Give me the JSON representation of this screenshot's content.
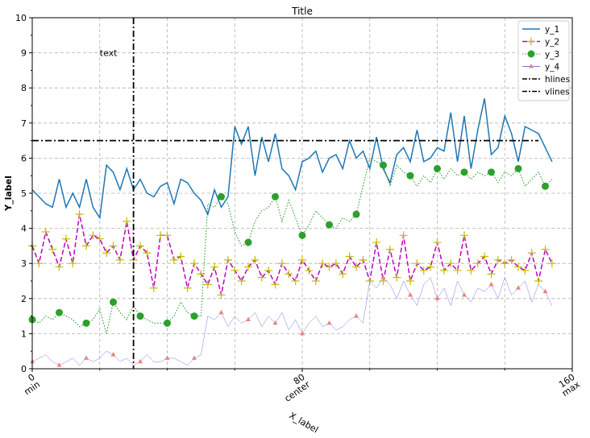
{
  "chart_data": {
    "type": "line",
    "title": "Title",
    "xlabel": "X_label",
    "ylabel": "Y_label",
    "xlim": [
      0,
      160
    ],
    "ylim": [
      0,
      10
    ],
    "grid": true,
    "legend_position": "top-right",
    "x_ticks": [
      {
        "value": 0,
        "label": "0\nmin"
      },
      {
        "value": 80,
        "label": "80\ncenter"
      },
      {
        "value": 160,
        "label": "160\nmax"
      }
    ],
    "x_minor_ticks": [
      20,
      40,
      60,
      100,
      120,
      140
    ],
    "y_ticks": [
      0,
      1,
      2,
      3,
      4,
      5,
      6,
      7,
      8,
      9,
      10
    ],
    "annotation": {
      "text": "text",
      "x": 20,
      "y": 9
    },
    "series": [
      {
        "name": "y_1",
        "color": "#1f77b4",
        "style": "solid",
        "x": [
          0,
          2,
          4,
          6,
          8,
          10,
          12,
          14,
          16,
          18,
          20,
          22,
          24,
          26,
          28,
          30,
          32,
          34,
          36,
          38,
          40,
          42,
          44,
          46,
          48,
          50,
          52,
          54,
          56,
          58,
          60,
          62,
          64,
          66,
          68,
          70,
          72,
          74,
          76,
          78,
          80,
          82,
          84,
          86,
          88,
          90,
          92,
          94,
          96,
          98,
          100,
          102,
          104,
          106,
          108,
          110,
          112,
          114,
          116,
          118,
          120,
          122,
          124,
          126,
          128,
          130,
          132,
          134,
          136,
          138,
          140,
          142,
          144,
          146,
          148,
          150,
          152,
          154
        ],
        "values": [
          5.1,
          4.9,
          4.7,
          4.6,
          5.4,
          4.6,
          5.0,
          4.6,
          5.4,
          4.6,
          4.3,
          5.8,
          5.6,
          5.1,
          5.7,
          5.1,
          5.4,
          5.0,
          4.9,
          5.2,
          5.3,
          4.7,
          5.4,
          5.3,
          5.0,
          4.8,
          4.4,
          5.1,
          4.6,
          4.9,
          6.9,
          6.4,
          6.9,
          5.5,
          6.6,
          5.9,
          6.7,
          5.7,
          5.5,
          5.1,
          5.9,
          6.0,
          6.2,
          5.6,
          6.0,
          6.1,
          5.7,
          6.5,
          6.0,
          6.2,
          5.7,
          6.6,
          5.7,
          5.3,
          6.1,
          6.3,
          5.9,
          6.8,
          5.9,
          6.0,
          6.3,
          6.2,
          7.3,
          5.9,
          7.2,
          5.7,
          6.8,
          7.7,
          6.1,
          6.3,
          7.2,
          6.7,
          5.9,
          6.9,
          6.8,
          6.7,
          6.3,
          5.9
        ]
      },
      {
        "name": "y_2",
        "color": "#bf00bf",
        "marker_color": "#bfbf00",
        "style": "dashed",
        "marker": "plus",
        "x": [
          0,
          2,
          4,
          6,
          8,
          10,
          12,
          14,
          16,
          18,
          20,
          22,
          24,
          26,
          28,
          30,
          32,
          34,
          36,
          38,
          40,
          42,
          44,
          46,
          48,
          50,
          52,
          54,
          56,
          58,
          60,
          62,
          64,
          66,
          68,
          70,
          72,
          74,
          76,
          78,
          80,
          82,
          84,
          86,
          88,
          90,
          92,
          94,
          96,
          98,
          100,
          102,
          104,
          106,
          108,
          110,
          112,
          114,
          116,
          118,
          120,
          122,
          124,
          126,
          128,
          130,
          132,
          134,
          136,
          138,
          140,
          142,
          144,
          146,
          148,
          150,
          152,
          154
        ],
        "values": [
          3.5,
          3.0,
          3.9,
          3.4,
          2.9,
          3.7,
          3.0,
          4.4,
          3.5,
          3.8,
          3.7,
          3.3,
          3.5,
          3.1,
          4.2,
          3.1,
          3.5,
          3.3,
          2.3,
          3.8,
          3.8,
          3.1,
          3.2,
          2.3,
          3.0,
          2.7,
          2.4,
          2.9,
          2.1,
          3.1,
          2.8,
          2.5,
          2.9,
          3.1,
          2.6,
          2.8,
          2.4,
          3.0,
          2.7,
          2.5,
          3.1,
          2.8,
          2.5,
          3.0,
          2.9,
          3.0,
          2.7,
          3.2,
          2.9,
          3.1,
          2.5,
          3.6,
          2.5,
          3.4,
          2.6,
          3.8,
          2.5,
          3.0,
          2.8,
          2.9,
          3.6,
          2.8,
          3.0,
          2.8,
          3.8,
          2.8,
          3.0,
          3.2,
          2.7,
          3.1,
          3.0,
          3.1,
          2.9,
          2.8,
          3.3,
          2.5,
          3.4,
          3.0
        ]
      },
      {
        "name": "y_3",
        "color": "#2ca02c",
        "marker_color": "#2ca02c",
        "style": "dotted",
        "marker": "circle",
        "x": [
          0,
          2,
          4,
          6,
          8,
          10,
          12,
          14,
          16,
          18,
          20,
          22,
          24,
          26,
          28,
          30,
          32,
          34,
          36,
          38,
          40,
          42,
          44,
          46,
          48,
          50,
          52,
          54,
          56,
          58,
          60,
          62,
          64,
          66,
          68,
          70,
          72,
          74,
          76,
          78,
          80,
          82,
          84,
          86,
          88,
          90,
          92,
          94,
          96,
          98,
          100,
          102,
          104,
          106,
          108,
          110,
          112,
          114,
          116,
          118,
          120,
          122,
          124,
          126,
          128,
          130,
          132,
          134,
          136,
          138,
          140,
          142,
          144,
          146,
          148,
          150,
          152,
          154
        ],
        "values": [
          1.4,
          1.3,
          1.5,
          1.4,
          1.6,
          1.5,
          1.4,
          1.2,
          1.3,
          1.4,
          1.7,
          1.0,
          1.9,
          1.6,
          1.4,
          1.8,
          1.5,
          1.4,
          1.3,
          1.3,
          1.3,
          1.5,
          1.9,
          1.6,
          1.5,
          1.5,
          4.7,
          4.6,
          4.9,
          4.7,
          3.9,
          3.5,
          3.6,
          4.2,
          4.5,
          4.6,
          4.9,
          4.2,
          4.8,
          4.3,
          3.8,
          4.1,
          4.5,
          4.3,
          4.1,
          4.0,
          4.3,
          4.2,
          4.4,
          5.2,
          6.0,
          5.9,
          5.8,
          5.2,
          5.8,
          5.6,
          5.5,
          5.2,
          5.5,
          5.3,
          5.7,
          5.4,
          5.7,
          5.5,
          5.6,
          5.4,
          5.6,
          5.5,
          5.6,
          5.3,
          5.6,
          5.5,
          5.7,
          5.2,
          5.4,
          5.6,
          5.2,
          5.4
        ]
      },
      {
        "name": "y_4",
        "color": "#7a7ae6",
        "marker_color": "#f08080",
        "style": "thin",
        "marker": "triangle",
        "x": [
          0,
          2,
          4,
          6,
          8,
          10,
          12,
          14,
          16,
          18,
          20,
          22,
          24,
          26,
          28,
          30,
          32,
          34,
          36,
          38,
          40,
          42,
          44,
          46,
          48,
          50,
          52,
          54,
          56,
          58,
          60,
          62,
          64,
          66,
          68,
          70,
          72,
          74,
          76,
          78,
          80,
          82,
          84,
          86,
          88,
          90,
          92,
          94,
          96,
          98,
          100,
          102,
          104,
          106,
          108,
          110,
          112,
          114,
          116,
          118,
          120,
          122,
          124,
          126,
          128,
          130,
          132,
          134,
          136,
          138,
          140,
          142,
          144,
          146,
          148,
          150,
          152,
          154
        ],
        "values": [
          0.2,
          0.3,
          0.4,
          0.2,
          0.1,
          0.2,
          0.3,
          0.1,
          0.3,
          0.2,
          0.3,
          0.5,
          0.4,
          0.2,
          0.3,
          0.1,
          0.2,
          0.4,
          0.2,
          0.2,
          0.3,
          0.3,
          0.2,
          0.1,
          0.3,
          0.4,
          1.5,
          1.4,
          1.6,
          1.2,
          1.5,
          1.3,
          1.4,
          1.6,
          1.2,
          1.5,
          1.3,
          1.6,
          1.1,
          1.4,
          1.0,
          1.3,
          1.5,
          1.2,
          1.3,
          1.1,
          1.2,
          1.4,
          1.5,
          1.3,
          2.5,
          2.3,
          2.6,
          2.4,
          2.0,
          2.5,
          2.1,
          1.8,
          2.4,
          2.6,
          2.0,
          2.3,
          1.8,
          2.5,
          2.1,
          1.9,
          2.3,
          2.2,
          2.4,
          2.0,
          2.6,
          2.1,
          2.3,
          2.5,
          1.9,
          2.4,
          2.2,
          1.8
        ]
      }
    ],
    "hlines": {
      "name": "hlines",
      "y": 6.5,
      "x_range": [
        0,
        150
      ],
      "color": "#000000",
      "style": "dashdot"
    },
    "vlines": {
      "name": "vlines",
      "x": 30,
      "y_range": [
        0,
        10
      ],
      "color": "#000000",
      "style": "dashdot"
    }
  }
}
